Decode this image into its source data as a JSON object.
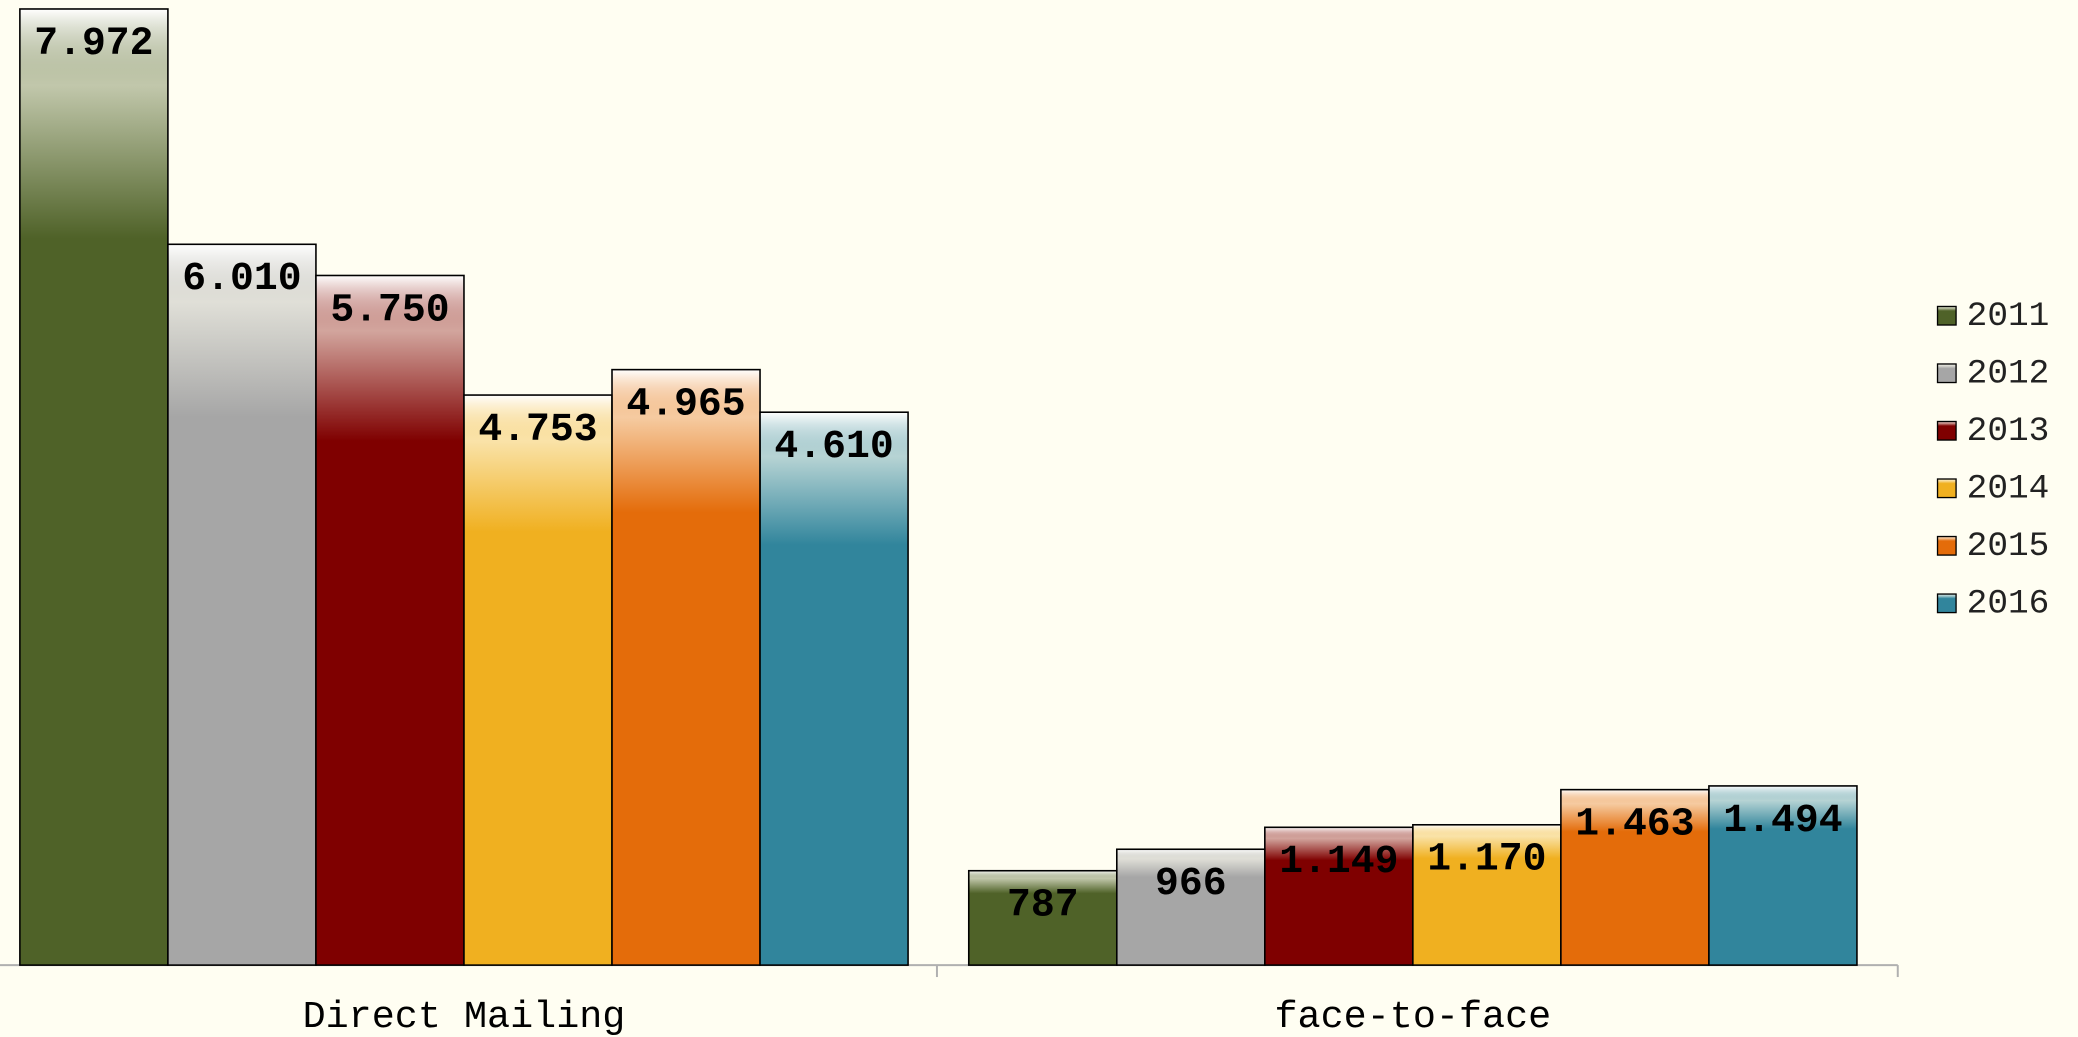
{
  "chart_data": {
    "type": "bar",
    "categories": [
      "Direct Mailing",
      "face-to-face"
    ],
    "series": [
      {
        "name": "2011",
        "color": "#4f6228",
        "values": [
          7972,
          787
        ],
        "value_labels": [
          "7.972",
          "787"
        ]
      },
      {
        "name": "2012",
        "color": "#a6a6a6",
        "values": [
          6010,
          966
        ],
        "value_labels": [
          "6.010",
          "966"
        ]
      },
      {
        "name": "2013",
        "color": "#7f0000",
        "values": [
          5750,
          1149
        ],
        "value_labels": [
          "5.750",
          "1.149"
        ]
      },
      {
        "name": "2014",
        "color": "#f0b020",
        "values": [
          4753,
          1170
        ],
        "value_labels": [
          "4.753",
          "1.170"
        ]
      },
      {
        "name": "2015",
        "color": "#e46c0a",
        "values": [
          4965,
          1463
        ],
        "value_labels": [
          "4.965",
          "1.463"
        ]
      },
      {
        "name": "2016",
        "color": "#31859c",
        "values": [
          4610,
          1494
        ],
        "value_labels": [
          "4.610",
          "1.494"
        ]
      }
    ],
    "ylim": [
      0,
      8000
    ],
    "legend": "right"
  }
}
